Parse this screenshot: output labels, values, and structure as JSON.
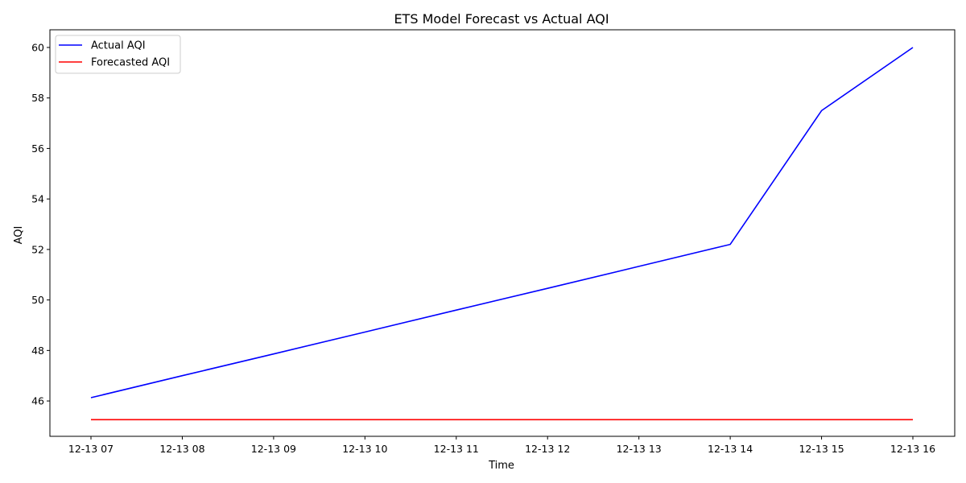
{
  "chart_data": {
    "type": "line",
    "title": "ETS Model Forecast vs Actual AQI",
    "xlabel": "Time",
    "ylabel": "AQI",
    "x": [
      "12-13 07",
      "12-13 08",
      "12-13 09",
      "12-13 10",
      "12-13 11",
      "12-13 12",
      "12-13 13",
      "12-13 14",
      "12-13 15",
      "12-13 16"
    ],
    "series": [
      {
        "name": "Actual AQI",
        "color": "#0000ff",
        "values": [
          46.13,
          47.0,
          47.86,
          48.73,
          49.6,
          50.46,
          51.33,
          52.2,
          57.5,
          60.0
        ]
      },
      {
        "name": "Forecasted AQI",
        "color": "#ff0000",
        "values": [
          45.26,
          45.26,
          45.26,
          45.26,
          45.26,
          45.26,
          45.26,
          45.26,
          45.26,
          45.26
        ]
      }
    ],
    "ylim": [
      44.6,
      60.7
    ],
    "yticks": [
      46,
      48,
      50,
      52,
      54,
      56,
      58,
      60
    ],
    "grid": false,
    "legend": "top-left"
  }
}
